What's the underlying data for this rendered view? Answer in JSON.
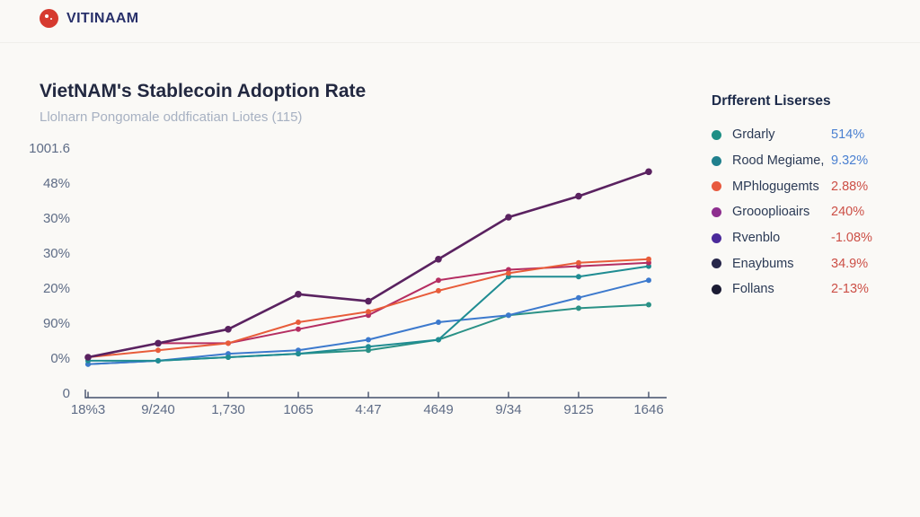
{
  "header": {
    "logo_text": "VITINAAM",
    "logo_color": "#d63a2f"
  },
  "chart_header": {
    "title": "VietNAM's Stablecoin Adoption Rate",
    "subtitle": "Llolnarn Pongomale oddficatian Liotes (115)"
  },
  "legend": {
    "title": "Drfferent Liserses",
    "items": [
      {
        "label": "Grdarly",
        "value": "514%",
        "dot_color": "#1f8f85",
        "value_color": "#4a80d1"
      },
      {
        "label": "Rood Megiame,",
        "value": "9.32%",
        "dot_color": "#20808d",
        "value_color": "#4a80d1"
      },
      {
        "label": "MPhlogugemts",
        "value": "2.88%",
        "dot_color": "#e85a3f",
        "value_color": "#cc4f46"
      },
      {
        "label": "Groooplioairs",
        "value": "240%",
        "dot_color": "#8e2f8f",
        "value_color": "#cc4f46"
      },
      {
        "label": "Rvenblo",
        "value": "-1.08%",
        "dot_color": "#4b2a9b",
        "value_color": "#cc4f46"
      },
      {
        "label": "Enaybums",
        "value": "34.9%",
        "dot_color": "#27274a",
        "value_color": "#cc4f46"
      },
      {
        "label": "Follans",
        "value": "2-13%",
        "dot_color": "#1b1b33",
        "value_color": "#cc4f46"
      }
    ]
  },
  "chart_data": {
    "type": "line",
    "title": "VietNAM's Stablecoin Adoption Rate",
    "subtitle": "Llolnarn Pongomale oddficatian Liotes (115)",
    "categories": [
      "18%3",
      "9/240",
      "1,730",
      "1065",
      "4:47",
      "4649",
      "9/34",
      "9125",
      "1646"
    ],
    "y_axis_labels": [
      "1001.6",
      "48%",
      "30%",
      "30%",
      "20%",
      "90%",
      "0%",
      "0"
    ],
    "grid": false,
    "legend_position": "right",
    "ylabel": "",
    "xlabel": "",
    "series": [
      {
        "name": "Grdarly",
        "color": "#2a9186",
        "line_width": 2,
        "marker_radius": 3,
        "values": [
          -2,
          -1,
          0,
          1,
          2,
          5,
          12,
          14,
          15
        ]
      },
      {
        "name": "Enaybums",
        "color": "#3c79cd",
        "line_width": 2,
        "marker_radius": 3,
        "values": [
          -2,
          -1,
          1,
          2,
          5,
          10,
          12,
          17,
          22
        ]
      },
      {
        "name": "Rood Megiame,",
        "color": "#1f8c92",
        "line_width": 2,
        "marker_radius": 3,
        "values": [
          -1,
          -1,
          0,
          1,
          3,
          5,
          23,
          23,
          26
        ]
      },
      {
        "name": "Groooplioairs",
        "color": "#b52e62",
        "line_width": 2,
        "marker_radius": 3,
        "values": [
          0,
          4,
          4,
          8,
          12,
          22,
          25,
          26,
          27
        ]
      },
      {
        "name": "MPhlogugemts",
        "color": "#e85c3a",
        "line_width": 2,
        "marker_radius": 3,
        "values": [
          0,
          2,
          4,
          10,
          13,
          19,
          24,
          27,
          28
        ]
      },
      {
        "name": "Rvenblo",
        "color": "#5a2260",
        "line_width": 2.6,
        "marker_radius": 3.8,
        "values": [
          0,
          4,
          8,
          18,
          16,
          28,
          40,
          46,
          53
        ]
      }
    ]
  }
}
